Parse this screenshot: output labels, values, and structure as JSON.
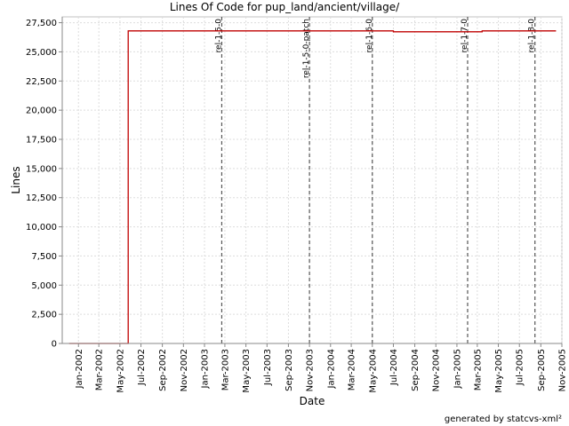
{
  "chart_data": {
    "type": "line",
    "title": "Lines Of Code for pup_land/ancient/village/",
    "xlabel": "Date",
    "ylabel": "Lines",
    "footer": "generated by statcvs-xml²",
    "xlim": [
      "2001-11-15",
      "2005-11-01"
    ],
    "ylim": [
      0,
      28000
    ],
    "grid": true,
    "x_ticks": [
      "Jan-2002",
      "Mar-2002",
      "May-2002",
      "Jul-2002",
      "Sep-2002",
      "Nov-2002",
      "Jan-2003",
      "Mar-2003",
      "May-2003",
      "Jul-2003",
      "Sep-2003",
      "Nov-2003",
      "Jan-2004",
      "Mar-2004",
      "May-2004",
      "Jul-2004",
      "Sep-2004",
      "Nov-2004",
      "Jan-2005",
      "Mar-2005",
      "May-2005",
      "Jul-2005",
      "Sep-2005",
      "Nov-2005"
    ],
    "y_ticks": [
      0,
      2500,
      5000,
      7500,
      10000,
      12500,
      15000,
      17500,
      20000,
      22500,
      25000,
      27500
    ],
    "y_tick_labels": [
      "0",
      "2,500",
      "5,000",
      "7,500",
      "10,000",
      "12,500",
      "15,000",
      "17,500",
      "20,000",
      "22,500",
      "25,000",
      "27,500"
    ],
    "series": [
      {
        "color": "#c00000",
        "points": [
          [
            "2001-12-05",
            0
          ],
          [
            "2002-05-25",
            0
          ],
          [
            "2002-05-25",
            26800
          ],
          [
            "2004-07-01",
            26800
          ],
          [
            "2004-07-01",
            26720
          ],
          [
            "2005-03-15",
            26720
          ],
          [
            "2005-03-15",
            26800
          ],
          [
            "2005-10-15",
            26800
          ]
        ]
      }
    ],
    "markers": [
      {
        "label": "rel-1-5-0",
        "date": "2003-02-20"
      },
      {
        "label": "rel-1-5-0-patch",
        "date": "2003-11-01"
      },
      {
        "label": "rel-1-6-0",
        "date": "2004-05-01"
      },
      {
        "label": "rel-1-7-0",
        "date": "2005-02-01"
      },
      {
        "label": "rel-1-8-0",
        "date": "2005-08-15"
      }
    ]
  }
}
